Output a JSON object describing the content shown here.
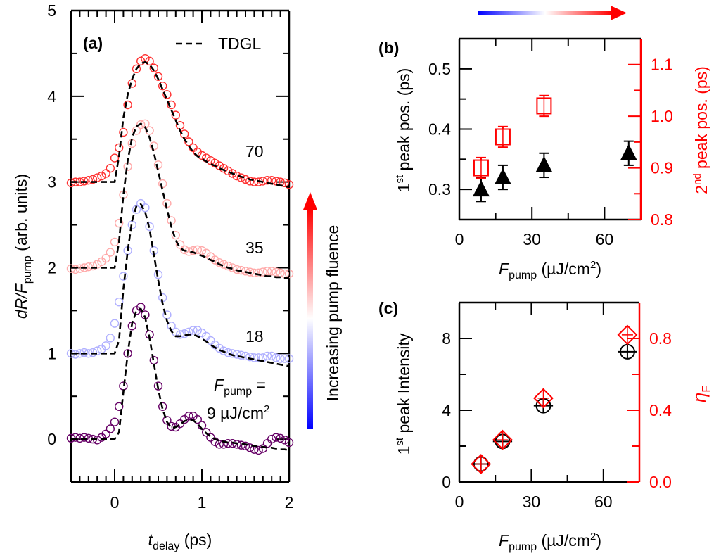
{
  "colors": {
    "s9": "#660066",
    "s18": "#b0b0ff",
    "s35": "#ffaaaa",
    "s70": "#ff3030",
    "right_axis": "#ff0000",
    "arrow_low": "#0000ff",
    "arrow_high": "#ff0000"
  },
  "arrow_label": "Increasing pump fluence",
  "chart_data": [
    {
      "type": "scatter",
      "panel": "(a)",
      "xlabel": {
        "italic": "t",
        "sub": "delay",
        "rest": " (ps)"
      },
      "ylabel": {
        "italic": "dR/F",
        "sub": "pump",
        "rest": " (arb. units)"
      },
      "xlim": [
        -0.5,
        2
      ],
      "ylim": [
        -0.5,
        5
      ],
      "xticks": [
        {
          "v": 0,
          "label": "0"
        },
        {
          "v": 1,
          "label": "1"
        },
        {
          "v": 2,
          "label": "2"
        }
      ],
      "yticks": [
        {
          "v": 0,
          "label": "0"
        },
        {
          "v": 1,
          "label": "1"
        },
        {
          "v": 2,
          "label": "2"
        },
        {
          "v": 3,
          "label": "3"
        },
        {
          "v": 4,
          "label": "4"
        },
        {
          "v": 5,
          "label": "5"
        }
      ],
      "legend": {
        "fit_label": "TDGL",
        "position": "top-right"
      },
      "annotations": {
        "f70": "70",
        "f35": "35",
        "f18": "18",
        "fpump_italic": "F",
        "fpump_sub": "pump",
        "fpump_eq": " =",
        "f9": "9 µJ/cm",
        "f9_sup": "2"
      },
      "t": [
        -0.5,
        -0.45,
        -0.4,
        -0.35,
        -0.3,
        -0.25,
        -0.2,
        -0.15,
        -0.1,
        -0.05,
        0,
        0.05,
        0.1,
        0.15,
        0.2,
        0.25,
        0.3,
        0.35,
        0.4,
        0.45,
        0.5,
        0.55,
        0.6,
        0.65,
        0.7,
        0.75,
        0.8,
        0.85,
        0.9,
        0.95,
        1.0,
        1.05,
        1.1,
        1.15,
        1.2,
        1.25,
        1.3,
        1.35,
        1.4,
        1.45,
        1.5,
        1.55,
        1.6,
        1.65,
        1.7,
        1.75,
        1.8,
        1.85,
        1.9,
        1.95,
        2.0
      ],
      "series": [
        {
          "fluence": 9,
          "color_key": "s9",
          "data": [
            0.01,
            0.02,
            0.01,
            0.02,
            0.01,
            0.0,
            -0.01,
            0.02,
            0.06,
            0.12,
            0.2,
            0.38,
            0.62,
            1.0,
            1.32,
            1.5,
            1.54,
            1.45,
            1.22,
            0.92,
            0.62,
            0.38,
            0.22,
            0.15,
            0.14,
            0.18,
            0.23,
            0.27,
            0.27,
            0.23,
            0.16,
            0.08,
            0.02,
            -0.03,
            -0.06,
            -0.06,
            -0.05,
            -0.05,
            -0.06,
            -0.07,
            -0.08,
            -0.1,
            -0.12,
            -0.13,
            -0.11,
            -0.05,
            0.0,
            0.02,
            0.01,
            -0.01,
            -0.04
          ],
          "fit": [
            0,
            0,
            0,
            0,
            0,
            0,
            0,
            0,
            0,
            0,
            0,
            0.08,
            0.55,
            1.0,
            1.35,
            1.5,
            1.52,
            1.42,
            1.18,
            0.88,
            0.58,
            0.35,
            0.2,
            0.13,
            0.14,
            0.17,
            0.21,
            0.23,
            0.22,
            0.18,
            0.12,
            0.07,
            0.03,
            0.0,
            -0.02,
            -0.03,
            -0.04,
            -0.04,
            -0.05,
            -0.05,
            -0.06,
            -0.07,
            -0.08,
            -0.08,
            -0.09,
            -0.1,
            -0.1,
            -0.11,
            -0.12,
            -0.12,
            -0.13
          ]
        },
        {
          "fluence": 18,
          "color_key": "s18",
          "data": [
            1.0,
            0.99,
            1.0,
            1.01,
            1.0,
            1.01,
            1.03,
            1.05,
            1.09,
            1.18,
            1.35,
            1.6,
            1.9,
            2.2,
            2.5,
            2.68,
            2.75,
            2.7,
            2.48,
            2.2,
            1.92,
            1.65,
            1.45,
            1.32,
            1.25,
            1.22,
            1.23,
            1.25,
            1.27,
            1.27,
            1.24,
            1.2,
            1.15,
            1.1,
            1.06,
            1.03,
            1.01,
            1.0,
            0.99,
            0.98,
            0.97,
            0.96,
            0.95,
            0.95,
            0.95,
            0.97,
            0.97,
            0.95,
            0.94,
            0.94,
            0.94
          ],
          "fit": [
            1,
            1,
            1,
            1,
            1,
            1,
            1,
            1,
            1,
            1,
            1.0,
            1.15,
            1.75,
            2.2,
            2.55,
            2.72,
            2.74,
            2.65,
            2.45,
            2.15,
            1.85,
            1.58,
            1.38,
            1.26,
            1.2,
            1.2,
            1.21,
            1.22,
            1.22,
            1.2,
            1.17,
            1.14,
            1.1,
            1.07,
            1.04,
            1.02,
            1.0,
            0.98,
            0.97,
            0.96,
            0.95,
            0.94,
            0.93,
            0.92,
            0.91,
            0.9,
            0.89,
            0.88,
            0.87,
            0.86,
            0.85
          ]
        },
        {
          "fluence": 35,
          "color_key": "s35",
          "data": [
            1.99,
            1.98,
            1.99,
            2.0,
            2.01,
            2.02,
            2.04,
            2.07,
            2.11,
            2.18,
            2.3,
            2.52,
            2.85,
            3.18,
            3.45,
            3.6,
            3.67,
            3.68,
            3.6,
            3.42,
            3.2,
            2.98,
            2.75,
            2.55,
            2.38,
            2.27,
            2.21,
            2.19,
            2.2,
            2.21,
            2.2,
            2.17,
            2.13,
            2.09,
            2.06,
            2.04,
            2.02,
            2.0,
            1.98,
            1.97,
            1.96,
            1.95,
            1.94,
            1.94,
            1.95,
            1.96,
            1.96,
            1.95,
            1.94,
            1.93,
            1.93
          ],
          "fit": [
            2,
            2,
            2,
            2,
            2,
            2,
            2,
            2,
            2,
            2,
            2.0,
            2.3,
            2.85,
            3.25,
            3.52,
            3.65,
            3.68,
            3.64,
            3.52,
            3.34,
            3.12,
            2.9,
            2.68,
            2.48,
            2.32,
            2.23,
            2.2,
            2.19,
            2.18,
            2.16,
            2.14,
            2.12,
            2.09,
            2.07,
            2.04,
            2.02,
            2.0,
            1.99,
            1.97,
            1.96,
            1.95,
            1.94,
            1.93,
            1.92,
            1.91,
            1.9,
            1.9,
            1.89,
            1.89,
            1.88,
            1.88
          ]
        },
        {
          "fluence": 70,
          "color_key": "s70",
          "data": [
            2.99,
            3.0,
            3.0,
            3.01,
            3.02,
            3.03,
            3.05,
            3.07,
            3.1,
            3.16,
            3.28,
            3.4,
            3.58,
            3.9,
            4.15,
            4.32,
            4.41,
            4.44,
            4.41,
            4.33,
            4.23,
            4.12,
            4.02,
            3.9,
            3.78,
            3.66,
            3.56,
            3.47,
            3.4,
            3.35,
            3.31,
            3.28,
            3.25,
            3.22,
            3.19,
            3.16,
            3.13,
            3.1,
            3.07,
            3.05,
            3.03,
            3.01,
            3.0,
            3.0,
            3.01,
            3.02,
            3.02,
            3.01,
            3.0,
            2.99,
            2.97
          ],
          "fit": [
            3,
            3,
            3,
            3,
            3,
            3,
            3,
            3,
            3,
            3,
            3.0,
            3.3,
            3.75,
            4.02,
            4.2,
            4.32,
            4.38,
            4.4,
            4.37,
            4.3,
            4.2,
            4.08,
            3.96,
            3.84,
            3.72,
            3.6,
            3.5,
            3.42,
            3.35,
            3.3,
            3.27,
            3.24,
            3.21,
            3.19,
            3.16,
            3.14,
            3.12,
            3.1,
            3.08,
            3.06,
            3.05,
            3.03,
            3.02,
            3.01,
            3.0,
            2.99,
            2.98,
            2.97,
            2.96,
            2.95,
            2.94
          ]
        }
      ]
    },
    {
      "type": "scatter",
      "panel": "(b)",
      "xlabel": {
        "italic": "F",
        "sub": "pump",
        "rest": " (µJ/cm",
        "sup": "2",
        "close": ")"
      },
      "ylabel_left": {
        "main": "1",
        "sup": "st",
        "rest": " peak pos. (ps)"
      },
      "ylabel_right": {
        "main": "2",
        "sup": "nd",
        "rest": " peak pos. (ps)"
      },
      "xlim": [
        0,
        75
      ],
      "ylim_left": [
        0.25,
        0.55
      ],
      "ylim_right": [
        0.8,
        1.15
      ],
      "xticks": [
        {
          "v": 0,
          "label": "0"
        },
        {
          "v": 30,
          "label": "30"
        },
        {
          "v": 60,
          "label": "60"
        }
      ],
      "yticks_left": [
        {
          "v": 0.3,
          "label": "0.3"
        },
        {
          "v": 0.4,
          "label": "0.4"
        },
        {
          "v": 0.5,
          "label": "0.5"
        }
      ],
      "yticks_right": [
        {
          "v": 0.8,
          "label": "0.8"
        },
        {
          "v": 0.9,
          "label": "0.9"
        },
        {
          "v": 1.0,
          "label": "1.0"
        },
        {
          "v": 1.1,
          "label": "1.1"
        }
      ],
      "series": [
        {
          "axis": "left",
          "marker": "filled-triangle",
          "color": "#000000",
          "x": [
            9,
            18,
            35,
            70
          ],
          "y": [
            0.3,
            0.32,
            0.34,
            0.36
          ],
          "yerr": [
            0.02,
            0.02,
            0.02,
            0.02
          ]
        },
        {
          "axis": "right",
          "marker": "open-square",
          "color": "#ff0000",
          "x": [
            9,
            18,
            35
          ],
          "y": [
            0.9,
            0.96,
            1.02
          ],
          "yerr": [
            0.02,
            0.02,
            0.02
          ]
        }
      ]
    },
    {
      "type": "scatter",
      "panel": "(c)",
      "xlabel": {
        "italic": "F",
        "sub": "pump",
        "rest": " (µJ/cm",
        "sup": "2",
        "close": ")"
      },
      "ylabel_left": {
        "main": "1",
        "sup": "st",
        "rest": " peak Intensity"
      },
      "ylabel_right": {
        "italic": "η",
        "sub": "F"
      },
      "xlim": [
        0,
        75
      ],
      "ylim_left": [
        0,
        10
      ],
      "ylim_right": [
        0,
        1.0
      ],
      "xticks": [
        {
          "v": 0,
          "label": "0"
        },
        {
          "v": 30,
          "label": "30"
        },
        {
          "v": 60,
          "label": "60"
        }
      ],
      "yticks_left": [
        {
          "v": 0,
          "label": "0"
        },
        {
          "v": 4,
          "label": "4"
        },
        {
          "v": 8,
          "label": "8"
        }
      ],
      "yticks_right": [
        {
          "v": 0,
          "label": "0.0"
        },
        {
          "v": 0.4,
          "label": "0.4"
        },
        {
          "v": 0.8,
          "label": "0.8"
        }
      ],
      "series": [
        {
          "axis": "left",
          "marker": "open-circle",
          "color": "#000000",
          "x": [
            9,
            18,
            35,
            70
          ],
          "y": [
            1.0,
            2.26,
            4.25,
            7.26
          ],
          "xerr": [
            4,
            4,
            4,
            4
          ]
        },
        {
          "axis": "right",
          "marker": "open-diamond",
          "color": "#ff0000",
          "x": [
            9,
            18,
            35,
            70
          ],
          "y": [
            0.1,
            0.235,
            0.467,
            0.82
          ]
        }
      ]
    }
  ]
}
